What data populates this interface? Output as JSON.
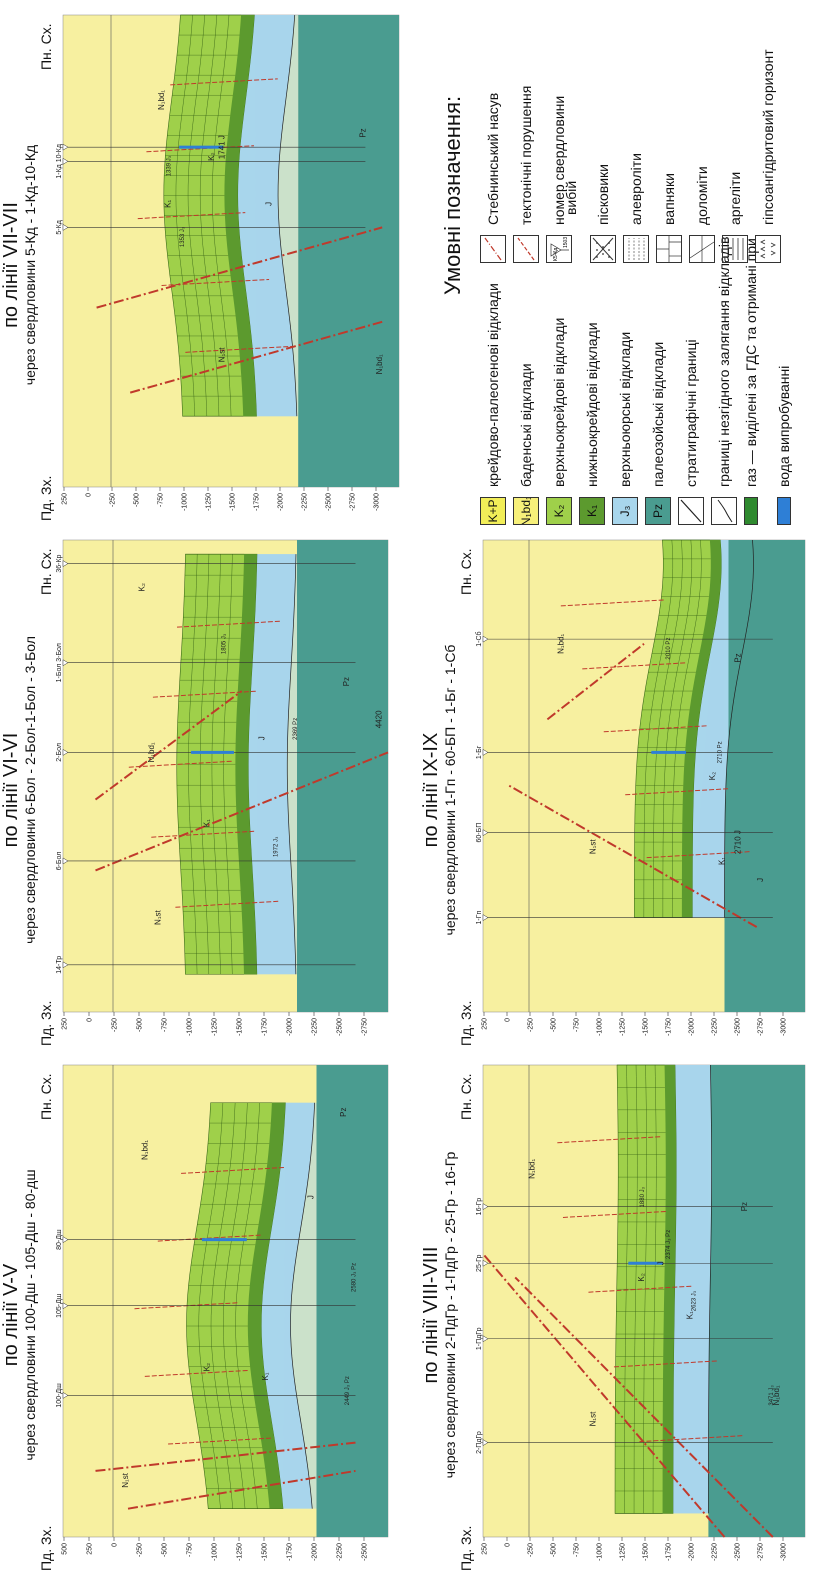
{
  "panels": [
    {
      "id": "v",
      "title": "по лінії V-V",
      "subtitle": "через свердловини 100-Дш - 105-Дш - 80-дш",
      "west": "Пд. Зх.",
      "east": "Пн. Сх.",
      "yticks": [
        "500",
        "250",
        "0",
        "-250",
        "-500",
        "-750",
        "-1000",
        "-1250",
        "-1500",
        "-1750",
        "-2000",
        "-2250",
        "-2500"
      ],
      "wells": [
        "100-Дш",
        "105-Дш",
        "80-Дш"
      ],
      "labels": [
        "N₁st",
        "N₁bd₁",
        "J",
        "Pz",
        "K₁",
        "K₂",
        "2449 J₃ Pz",
        "2580 J₃ Pz"
      ]
    },
    {
      "id": "vi",
      "title": "по лінії VI-VI",
      "subtitle": "через свердловини 6-Бол - 2-Бол-1-Бол - 3-Бол",
      "west": "Пд. Зх.",
      "east": "Пн. Сх.",
      "yticks": [
        "250",
        "0",
        "-250",
        "-500",
        "-750",
        "-1000",
        "-1250",
        "-1500",
        "-1750",
        "-2000",
        "-2250",
        "-2500",
        "-2750"
      ],
      "wells": [
        "14-Тр",
        "6-Бол",
        "2-Бол",
        "1-Бол 3-Бол",
        "36-Кр"
      ],
      "labels": [
        "N₁st",
        "N₁bd₁",
        "J",
        "Pz",
        "K₁",
        "K₂",
        "1972 J₃",
        "2369 Pz",
        "1805 J₃",
        "4420"
      ]
    },
    {
      "id": "vii",
      "title": "по лінії VII-VII",
      "subtitle": "через свердловини 5-Кд - 1-Кд-10-Кд",
      "west": "Пд. Зх.",
      "east": "Пн. Сх.",
      "yticks": [
        "250",
        "0",
        "-250",
        "-500",
        "-750",
        "-1000",
        "-1250",
        "-1500",
        "-1750",
        "-2000",
        "-2250",
        "-2500",
        "-2750",
        "-3000"
      ],
      "wells": [
        "5-Кд",
        "1-Кд 10-Кд"
      ],
      "labels": [
        "N₁st",
        "N₁bd₁",
        "N₁bd₁",
        "J",
        "Pz",
        "K₁",
        "K₂",
        "1353 J₃",
        "1339 J₃",
        "1741 J"
      ]
    },
    {
      "id": "viii",
      "title": "по лінії VIII-VIII",
      "subtitle": "через свердловини 2-ПдГр - 1-ПдГр - 25-Гр - 16-Гр",
      "west": "Пд. Зх.",
      "east": "Пн. Сх.",
      "yticks": [
        "250",
        "0",
        "-250",
        "-500",
        "-750",
        "-1000",
        "-1250",
        "-1500",
        "-1750",
        "-2000",
        "-2250",
        "-2500",
        "-2750",
        "-3000"
      ],
      "wells": [
        "2-ПдГр",
        "1-ПдГр",
        "25-Гр",
        "16-Гр"
      ],
      "labels": [
        "N₁st",
        "N₁bd₁",
        "N₁bd₁",
        "J",
        "Pz",
        "K₁",
        "K₂",
        "3471 J₃",
        "2623 J₃",
        "2374 J₃ Pz",
        "1880 J₃"
      ]
    },
    {
      "id": "ix",
      "title": "по лінії IX-IX",
      "subtitle": "через свердловини 1-Гп - 60-БП - 1-Бг - 1-Сб",
      "west": "Пд. Зх.",
      "east": "Пн. Сх.",
      "yticks": [
        "250",
        "0",
        "-250",
        "-500",
        "-750",
        "-1000",
        "-1250",
        "-1500",
        "-1750",
        "-2000",
        "-2250",
        "-2500",
        "-2750",
        "-3000"
      ],
      "wells": [
        "1-Гп",
        "60-БП",
        "1-Бг",
        "1-Сб"
      ],
      "labels": [
        "N₁st",
        "N₁bd₁",
        "J",
        "Pz",
        "K₁",
        "K₂",
        "2710 J",
        "2710 Pz",
        "2010 Pz"
      ]
    }
  ],
  "legend": {
    "title": "Умовні позначення:",
    "left": [
      {
        "sym": "K+P",
        "color": "#f2ee58",
        "text": "крейдово-палеогенові відклади"
      },
      {
        "sym": "N₁bd₁",
        "color": "#f7f07a",
        "text": "баденські відклади"
      },
      {
        "sym": "K₂",
        "color": "#9fd04a",
        "text": "верхньокрейдові відклади"
      },
      {
        "sym": "K₁",
        "color": "#5c9a2e",
        "text": "нижньокрейдові відклади"
      },
      {
        "sym": "J₃",
        "color": "#a8d6ec",
        "text": "верхньоюрські відклади"
      },
      {
        "sym": "Pz",
        "color": "#4a9c90",
        "text": "палеозойські відклади"
      },
      {
        "sym": "",
        "color": "#ffffff",
        "text": "стратиграфічні границі"
      },
      {
        "sym": "",
        "color": "#ffffff",
        "text": "границі незгідного залягання відкладів"
      },
      {
        "sym": "",
        "color": "#ffffff",
        "text": "газ — виділені за ГДС та отримані при"
      },
      {
        "sym": "",
        "color": "#ffffff",
        "text": "вода    випробуванні"
      }
    ],
    "right": [
      {
        "text": "Стебнинський насув"
      },
      {
        "text": "тектонічні порушення"
      },
      {
        "text": "номер свердловини"
      },
      {
        "text": "вибій"
      },
      {
        "text": "пісковики"
      },
      {
        "text": "алевроліти"
      },
      {
        "text": "вапняки"
      },
      {
        "text": "доломіти"
      },
      {
        "text": "аргеліти"
      },
      {
        "text": "гіпсоангідритовий горизонт"
      }
    ],
    "well_sym": [
      "К5-Кд",
      "1503"
    ]
  },
  "colors": {
    "sand": "#f7f0a0",
    "yellow": "#f7ee7a",
    "greenLight": "#9fd04a",
    "greenDark": "#5c9a2e",
    "blue": "#a8d6ec",
    "teal": "#4a9c90",
    "fault": "#c0392b",
    "well": "#333333"
  }
}
